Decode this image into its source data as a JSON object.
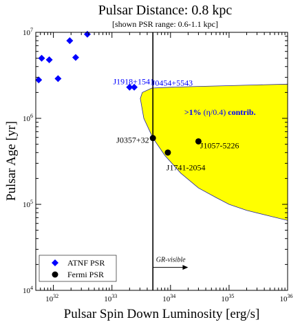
{
  "chart_data": {
    "type": "scatter",
    "title": "Pulsar Distance: 0.8 kpc",
    "subtitle": "[shown PSR range: 0.6-1.1 kpc]",
    "xlabel": "Pulsar Spin Down Luminosity [erg/s]",
    "ylabel": "Pulsar Age [yr]",
    "x_scale": "log",
    "y_scale": "log",
    "xlim": [
      5e+31,
      1e+36
    ],
    "ylim": [
      10000,
      10000000
    ],
    "x_ticks": [
      {
        "value": 1e+32,
        "base": "10",
        "exp": "32"
      },
      {
        "value": 1e+33,
        "base": "10",
        "exp": "33"
      },
      {
        "value": 1e+34,
        "base": "10",
        "exp": "34"
      },
      {
        "value": 1e+35,
        "base": "10",
        "exp": "35"
      },
      {
        "value": 1e+36,
        "base": "10",
        "exp": "36"
      }
    ],
    "y_ticks": [
      {
        "value": 10000,
        "base": "10",
        "exp": "4"
      },
      {
        "value": 100000,
        "base": "10",
        "exp": "5"
      },
      {
        "value": 1000000,
        "base": "10",
        "exp": "6"
      },
      {
        "value": 10000000,
        "base": "10",
        "exp": "7"
      }
    ],
    "grid": false,
    "legend_position": "bottom-left",
    "series": [
      {
        "name": "ATNF PSR",
        "marker": "diamond",
        "color": "#0000ff",
        "points": [
          {
            "x": 5.6e+31,
            "y": 2800000.0
          },
          {
            "x": 6.3e+31,
            "y": 5000000.0
          },
          {
            "x": 8.5e+31,
            "y": 4800000.0
          },
          {
            "x": 1.2e+32,
            "y": 2900000.0
          },
          {
            "x": 1.9e+32,
            "y": 8000000.0
          },
          {
            "x": 2.4e+32,
            "y": 5100000.0
          },
          {
            "x": 3.8e+32,
            "y": 9500000.0
          },
          {
            "x": 2e+33,
            "y": 2300000.0
          },
          {
            "x": 2.4e+33,
            "y": 2300000.0
          }
        ],
        "labels": [
          {
            "text": "J1918+1541",
            "x": 1.05e+33,
            "y": 2500000.0
          },
          {
            "text": "J0454+5543",
            "x": 4.8e+33,
            "y": 2400000.0
          }
        ]
      },
      {
        "name": "Fermi PSR",
        "marker": "circle",
        "color": "#000000",
        "points": [
          {
            "x": 5e+33,
            "y": 590000.0
          },
          {
            "x": 9e+33,
            "y": 400000.0
          },
          {
            "x": 3e+34,
            "y": 540000.0
          }
        ],
        "labels": [
          {
            "text": "J0357+32",
            "x": 4.3e+33,
            "y": 520000.0,
            "anchor": "end"
          },
          {
            "text": "J1741-2054",
            "x": 8.5e+33,
            "y": 250000.0
          },
          {
            "text": "J1057-5226",
            "x": 3.2e+34,
            "y": 450000.0
          }
        ]
      }
    ],
    "region": {
      "fill": "#ffff00",
      "label_bold_1": ">1%",
      "label_mid": "(η/0.4)",
      "label_bold_2": "contrib.",
      "label_color": "#0000ff",
      "label_x": 7e+34,
      "label_y": 1100000.0,
      "boundary": [
        [
          1e+36,
          2500000.0
        ],
        [
          3e+35,
          2450000.0
        ],
        [
          1e+35,
          2400000.0
        ],
        [
          3e+34,
          2350000.0
        ],
        [
          1e+34,
          2300000.0
        ],
        [
          4.8e+33,
          2250000.0
        ],
        [
          3.3e+33,
          2000000.0
        ],
        [
          3.05e+33,
          1700000.0
        ],
        [
          3.5e+33,
          1000000.0
        ],
        [
          5e+33,
          590000.0
        ],
        [
          8e+33,
          370000.0
        ],
        [
          1.5e+34,
          230000.0
        ],
        [
          3e+34,
          155000.0
        ],
        [
          6e+34,
          120000.0
        ],
        [
          1e+35,
          100000.0
        ],
        [
          2e+35,
          85000.0
        ],
        [
          5e+35,
          73000.0
        ],
        [
          1e+36,
          65000.0
        ]
      ]
    },
    "vline": {
      "x": 5e+33,
      "color": "#000000"
    },
    "arrow": {
      "text": "GR-visible",
      "x_start": 5.1e+33,
      "x_end": 2e+34,
      "y": 18500.0
    }
  }
}
